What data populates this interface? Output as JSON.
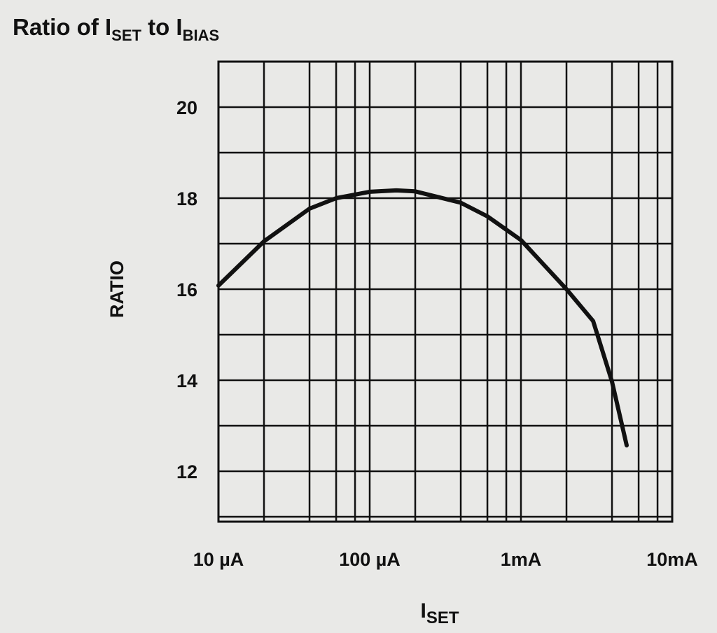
{
  "chart_data": {
    "type": "line",
    "title_parts": [
      {
        "text": "Ratio of I"
      },
      {
        "text": "SET",
        "sub": true
      },
      {
        "text": " to I"
      },
      {
        "text": "BIAS",
        "sub": true
      }
    ],
    "x_label_parts": [
      {
        "text": "I"
      },
      {
        "text": "SET",
        "sub": true
      }
    ],
    "y_label": "RATIO",
    "x_log": true,
    "xlim": [
      1e-05,
      0.01
    ],
    "xticks": [
      {
        "value": 1e-05,
        "label": "10 µA"
      },
      {
        "value": 0.0001,
        "label": "100 µA"
      },
      {
        "value": 0.001,
        "label": "1mA"
      },
      {
        "value": 0.01,
        "label": "10mA"
      }
    ],
    "x_minor_ticks": [
      2e-05,
      4e-05,
      6e-05,
      8e-05,
      0.0002,
      0.0004,
      0.0006,
      0.0008,
      0.002,
      0.004,
      0.006,
      0.008
    ],
    "ylim": [
      11,
      21
    ],
    "yticks": [
      12,
      14,
      16,
      18,
      20
    ],
    "y_minor_ticks": [
      11,
      13,
      15,
      17,
      19,
      21
    ],
    "grid": true,
    "series": [
      {
        "color": "#111111",
        "x": [
          1e-05,
          2e-05,
          4e-05,
          6e-05,
          0.0001,
          0.00015,
          0.0002,
          0.0004,
          0.0006,
          0.001,
          0.002,
          0.003,
          0.004,
          0.005
        ],
        "values": [
          16.08,
          17.05,
          17.77,
          18.0,
          18.14,
          18.17,
          18.15,
          17.9,
          17.6,
          17.08,
          16.0,
          15.3,
          13.97,
          12.57
        ]
      }
    ]
  }
}
